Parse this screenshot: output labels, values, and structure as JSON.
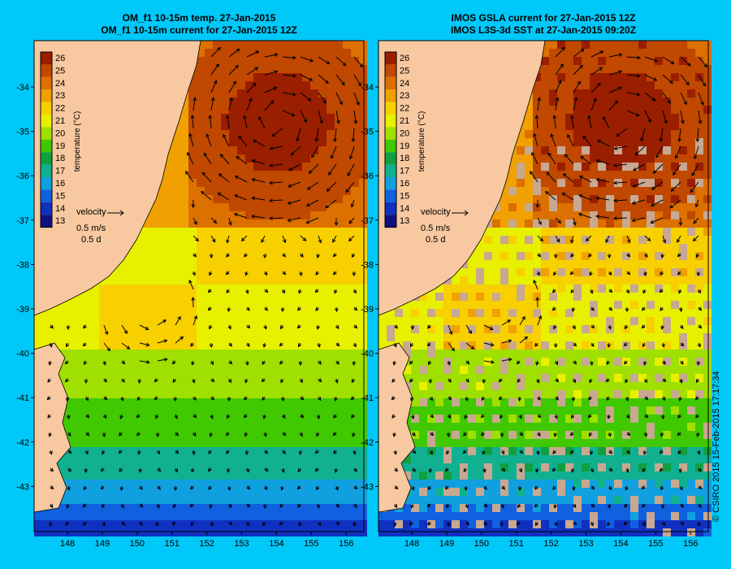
{
  "panels": [
    {
      "title_line1": "OM_f1 10-15m temp. 27-Jan-2015",
      "title_line2": "OM_f1 10-15m current for 27-Jan-2015 12Z",
      "kind": "model"
    },
    {
      "title_line1": "IMOS GSLA current for 27-Jan-2015 12Z",
      "title_line2": "IMOS L3S-3d SST at 27-Jan-2015 09:20Z",
      "kind": "satellite"
    }
  ],
  "lat_ticks": [
    "-34",
    "-35",
    "-36",
    "-37",
    "-38",
    "-39",
    "-40",
    "-41",
    "-42",
    "-43"
  ],
  "lon_ticks": [
    "148",
    "149",
    "150",
    "151",
    "152",
    "153",
    "154",
    "155",
    "156"
  ],
  "colorbar": {
    "label": "temperature (°C)",
    "ticks": [
      "26",
      "25",
      "24",
      "23",
      "22",
      "21",
      "20",
      "19",
      "18",
      "17",
      "16",
      "15",
      "14",
      "13"
    ],
    "colors": [
      "#9a1e00",
      "#c04800",
      "#dc7000",
      "#f0a000",
      "#f8d000",
      "#e8f000",
      "#a0e000",
      "#40c800",
      "#10a040",
      "#10b090",
      "#10a0e0",
      "#1060e0",
      "#1030c0",
      "#101080"
    ]
  },
  "velocity_legend": {
    "title": "velocity",
    "speed": "0.5 m/s",
    "duration": "0.5 d"
  },
  "credit": "© CSIRO 2015   15-Feb-2015 17:17:34",
  "colors": {
    "frame_background": "#00c8f8",
    "land": "#f8c8a0",
    "no_data": "#c8a890"
  }
}
